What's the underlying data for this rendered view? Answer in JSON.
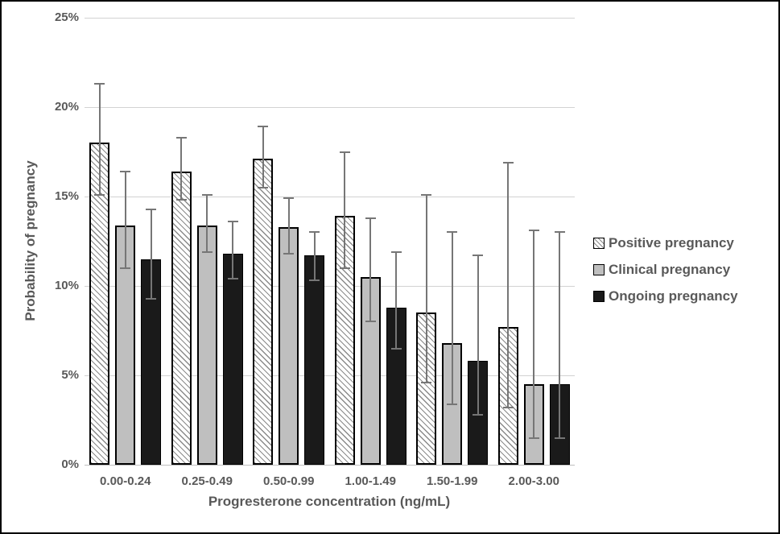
{
  "axes": {
    "y_title": "Probability of pregnancy",
    "x_title": "Progresterone concentration (ng/mL)"
  },
  "colors": {
    "text": "#595959",
    "gridline": "#d2d2d2",
    "axis_line": "#bfbfbf",
    "error_bar": "#767676",
    "bar_border": "#000000",
    "positive_fill": "#ffffff",
    "clinical_fill": "#bfbfbf",
    "ongoing_fill": "#1a1a1a",
    "background": "#ffffff",
    "frame_border": "#000000"
  },
  "chart_data": {
    "type": "bar",
    "title": "",
    "xlabel": "Progresterone concentration (ng/mL)",
    "ylabel": "Probability of pregnancy",
    "ylim": [
      0,
      25
    ],
    "ytick_step": 5,
    "y_ticks": [
      "0%",
      "5%",
      "10%",
      "15%",
      "20%",
      "25%"
    ],
    "grid": true,
    "legend_position": "right",
    "error_bars": true,
    "categories": [
      "0.00-0.24",
      "0.25-0.49",
      "0.50-0.99",
      "1.00-1.49",
      "1.50-1.99",
      "2.00-3.00"
    ],
    "series": [
      {
        "name": "Positive pregnancy",
        "pattern": "diagonal-hatch",
        "fill": "#ffffff",
        "values": [
          18.0,
          16.4,
          17.1,
          13.9,
          8.5,
          7.7
        ],
        "err_low": [
          15.1,
          14.8,
          15.5,
          11.0,
          4.6,
          3.2
        ],
        "err_high": [
          21.3,
          18.3,
          18.9,
          17.5,
          15.1,
          16.9
        ]
      },
      {
        "name": "Clinical pregnancy",
        "pattern": "solid",
        "fill": "#bfbfbf",
        "values": [
          13.4,
          13.4,
          13.3,
          10.5,
          6.8,
          4.5
        ],
        "err_low": [
          11.0,
          11.9,
          11.8,
          8.0,
          3.4,
          1.5
        ],
        "err_high": [
          16.4,
          15.1,
          14.9,
          13.8,
          13.0,
          13.1
        ]
      },
      {
        "name": "Ongoing pregnancy",
        "pattern": "solid",
        "fill": "#1a1a1a",
        "values": [
          11.5,
          11.8,
          11.7,
          8.8,
          5.8,
          4.5
        ],
        "err_low": [
          9.3,
          10.4,
          10.3,
          6.5,
          2.8,
          1.5
        ],
        "err_high": [
          14.3,
          13.6,
          13.0,
          11.9,
          11.7,
          13.0
        ]
      }
    ]
  }
}
